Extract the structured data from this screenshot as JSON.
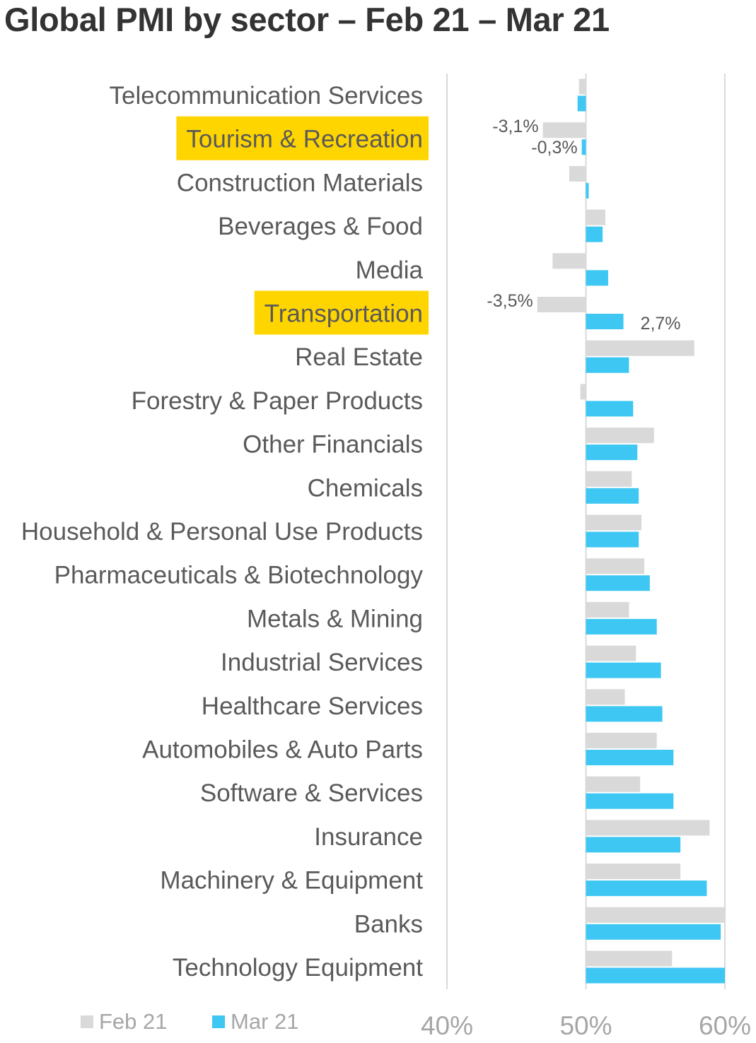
{
  "title": "Global PMI by sector – Feb 21 – Mar 21",
  "colors": {
    "feb": "#d9d9d9",
    "mar": "#3ec7f3",
    "highlight": "#ffd500",
    "gridline": "#d9d9d9"
  },
  "chart_data": {
    "type": "bar",
    "orientation": "horizontal",
    "title": "Global PMI by sector – Feb 21 – Mar 21",
    "categories": [
      "Telecommunication Services",
      "Tourism & Recreation",
      "Construction Materials",
      "Beverages & Food",
      "Media",
      "Transportation",
      "Real Estate",
      "Forestry & Paper Products",
      "Other Financials",
      "Chemicals",
      "Household & Personal Use Products",
      "Pharmaceuticals & Biotechnology",
      "Metals & Mining",
      "Industrial Services",
      "Healthcare Services",
      "Automobiles & Auto Parts",
      "Software & Services",
      "Insurance",
      "Machinery & Equipment",
      "Banks",
      "Technology Equipment"
    ],
    "highlighted_categories": [
      "Tourism & Recreation",
      "Transportation"
    ],
    "series": [
      {
        "name": "Feb 21",
        "values": [
          49.5,
          46.9,
          48.8,
          51.4,
          47.6,
          46.5,
          57.8,
          49.6,
          54.9,
          53.3,
          54.0,
          54.2,
          53.1,
          53.6,
          52.8,
          55.1,
          53.9,
          58.9,
          56.8,
          60.0,
          56.2
        ]
      },
      {
        "name": "Mar 21",
        "values": [
          49.4,
          49.7,
          50.2,
          51.2,
          51.6,
          52.7,
          53.1,
          53.4,
          53.7,
          53.8,
          53.8,
          54.6,
          55.1,
          55.4,
          55.5,
          56.3,
          56.3,
          56.8,
          58.7,
          59.7,
          60.0
        ]
      }
    ],
    "annotations": [
      {
        "category": "Tourism & Recreation",
        "series": "Feb 21",
        "text": "-3,1%"
      },
      {
        "category": "Tourism & Recreation",
        "series": "Mar 21",
        "text": "-0,3%"
      },
      {
        "category": "Transportation",
        "series": "Feb 21",
        "text": "-3,5%"
      },
      {
        "category": "Transportation",
        "series": "Mar 21",
        "text": "2,7%"
      }
    ],
    "x_axis": {
      "min": 40,
      "max": 60,
      "baseline": 50,
      "ticks": [
        40,
        50,
        60
      ],
      "tick_labels": [
        "40%",
        "50%",
        "60%"
      ]
    },
    "legend": {
      "placement": "bottom-left",
      "entries": [
        "Feb 21",
        "Mar 21"
      ]
    },
    "grid": true
  }
}
